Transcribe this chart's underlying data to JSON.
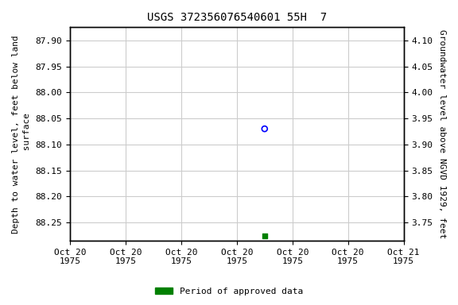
{
  "title": "USGS 372356076540601 55H  7",
  "point1_depth": 88.07,
  "point2_depth": 88.275,
  "point1_color": "blue",
  "legend_color": "#008000",
  "ylabel_left": "Depth to water level, feet below land\n surface",
  "ylabel_right": "Groundwater level above NGVD 1929, feet",
  "ylim_left": [
    88.285,
    87.875
  ],
  "ylim_right": [
    3.715,
    4.125
  ],
  "yticks_left": [
    87.9,
    87.95,
    88.0,
    88.05,
    88.1,
    88.15,
    88.2,
    88.25
  ],
  "yticks_right": [
    3.75,
    3.8,
    3.85,
    3.9,
    3.95,
    4.0,
    4.05,
    4.1
  ],
  "xtick_labels": [
    "Oct 20\n1975",
    "Oct 20\n1975",
    "Oct 20\n1975",
    "Oct 20\n1975",
    "Oct 20\n1975",
    "Oct 20\n1975",
    "Oct 21\n1975"
  ],
  "bg_color": "#ffffff",
  "grid_color": "#cccccc",
  "legend_label": "Period of approved data",
  "title_fontsize": 10,
  "label_fontsize": 8,
  "tick_fontsize": 8
}
